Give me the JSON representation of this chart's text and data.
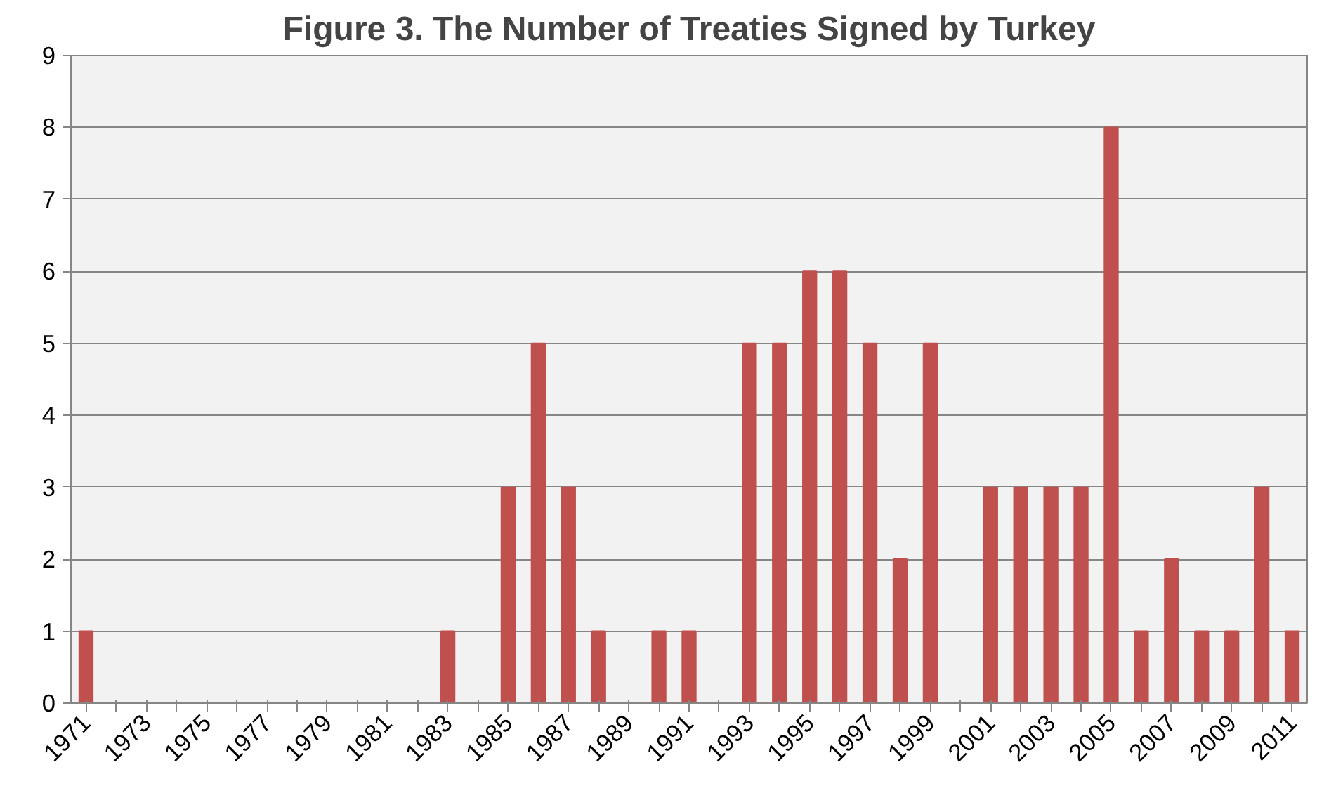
{
  "chart_data": {
    "type": "bar",
    "title": "Figure 3. The Number of Treaties Signed by Turkey",
    "categories": [
      "1971",
      null,
      "1973",
      null,
      "1975",
      null,
      "1977",
      null,
      "1979",
      null,
      "1981",
      null,
      "1983",
      null,
      "1985",
      null,
      "1987",
      null,
      "1989",
      null,
      "1991",
      null,
      "1993",
      null,
      "1995",
      null,
      "1997",
      null,
      "1999",
      null,
      "2001",
      null,
      "2003",
      null,
      "2005",
      null,
      "2007",
      null,
      "2009",
      null,
      "2011"
    ],
    "values": [
      1,
      0,
      0,
      0,
      0,
      0,
      0,
      0,
      0,
      0,
      0,
      0,
      1,
      0,
      3,
      5,
      3,
      1,
      0,
      1,
      1,
      0,
      5,
      5,
      6,
      6,
      5,
      2,
      5,
      0,
      3,
      3,
      3,
      3,
      8,
      1,
      2,
      1,
      1,
      3,
      1
    ],
    "color": "#c0504d",
    "ylim": [
      0,
      9
    ],
    "yticks": [
      0,
      1,
      2,
      3,
      4,
      5,
      6,
      7,
      8,
      9
    ],
    "grid": "y"
  }
}
